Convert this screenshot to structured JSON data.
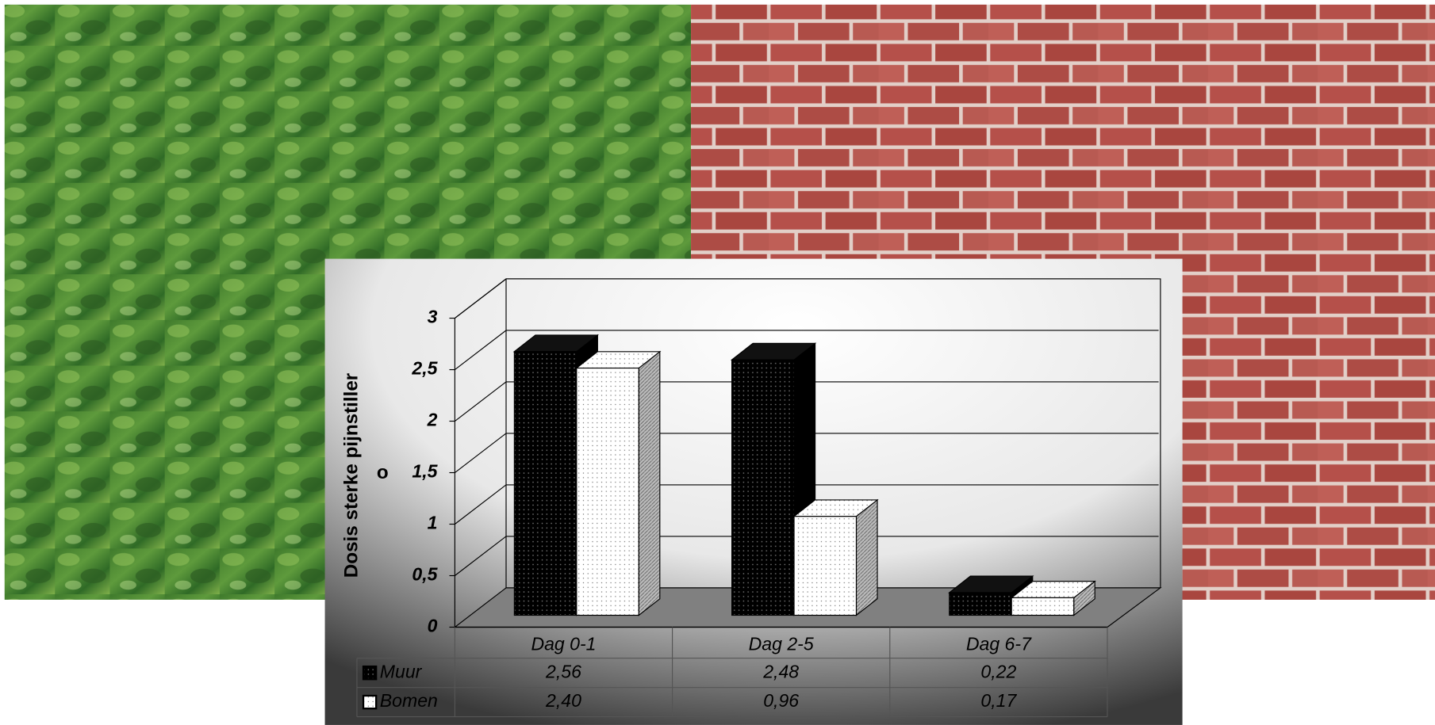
{
  "chart_data": {
    "type": "bar",
    "y_label": [
      "Dosis sterke pijnstiller",
      "o"
    ],
    "categories": [
      "Dag 0-1",
      "Dag 2-5",
      "Dag 6-7"
    ],
    "series": [
      {
        "name": "Muur",
        "color": "#000000",
        "values": [
          2.56,
          2.48,
          0.22
        ],
        "value_labels": [
          "2,56",
          "2,48",
          "0,22"
        ]
      },
      {
        "name": "Bomen",
        "color": "#ffffff",
        "values": [
          2.4,
          0.96,
          0.17
        ],
        "value_labels": [
          "2,40",
          "0,96",
          "0,17"
        ]
      }
    ],
    "ylim": [
      0,
      3
    ],
    "yticks": [
      0,
      {
        "value": 0.5,
        "label": "0,5"
      },
      1,
      {
        "value": 1.5,
        "label": "1,5"
      },
      2,
      {
        "value": 2.5,
        "label": "2,5"
      },
      3
    ],
    "grid": true
  }
}
